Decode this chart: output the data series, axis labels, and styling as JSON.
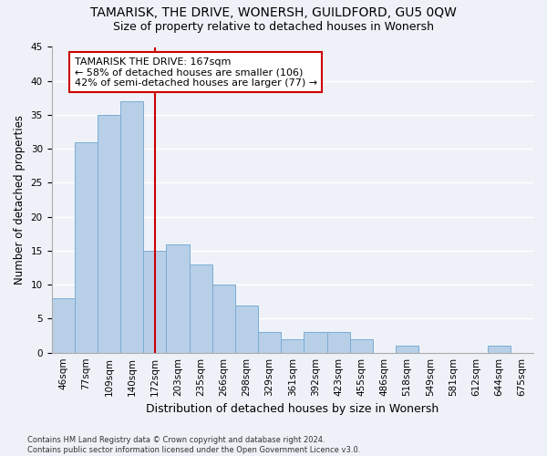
{
  "title1": "TAMARISK, THE DRIVE, WONERSH, GUILDFORD, GU5 0QW",
  "title2": "Size of property relative to detached houses in Wonersh",
  "xlabel": "Distribution of detached houses by size in Wonersh",
  "ylabel": "Number of detached properties",
  "bin_labels": [
    "46sqm",
    "77sqm",
    "109sqm",
    "140sqm",
    "172sqm",
    "203sqm",
    "235sqm",
    "266sqm",
    "298sqm",
    "329sqm",
    "361sqm",
    "392sqm",
    "423sqm",
    "455sqm",
    "486sqm",
    "518sqm",
    "549sqm",
    "581sqm",
    "612sqm",
    "644sqm",
    "675sqm"
  ],
  "bar_values": [
    8,
    31,
    35,
    37,
    15,
    16,
    13,
    10,
    7,
    3,
    2,
    3,
    3,
    2,
    0,
    1,
    0,
    0,
    0,
    1,
    0
  ],
  "bar_color": "#b8cfe8",
  "bar_edge_color": "#7aadd4",
  "vline_pos": 4.0,
  "annotation_text": "TAMARISK THE DRIVE: 167sqm\n← 58% of detached houses are smaller (106)\n42% of semi-detached houses are larger (77) →",
  "annotation_box_color": "#ffffff",
  "annotation_box_edge": "#cc0000",
  "vline_color": "#cc0000",
  "ylim": [
    0,
    45
  ],
  "yticks": [
    0,
    5,
    10,
    15,
    20,
    25,
    30,
    35,
    40,
    45
  ],
  "footnote": "Contains HM Land Registry data © Crown copyright and database right 2024.\nContains public sector information licensed under the Open Government Licence v3.0.",
  "background_color": "#eef2f8",
  "grid_color": "#ffffff",
  "title_fontsize": 10,
  "subtitle_fontsize": 9,
  "annot_fontsize": 8,
  "tick_fontsize": 7.5,
  "ylabel_fontsize": 8.5,
  "xlabel_fontsize": 9,
  "footnote_fontsize": 6
}
